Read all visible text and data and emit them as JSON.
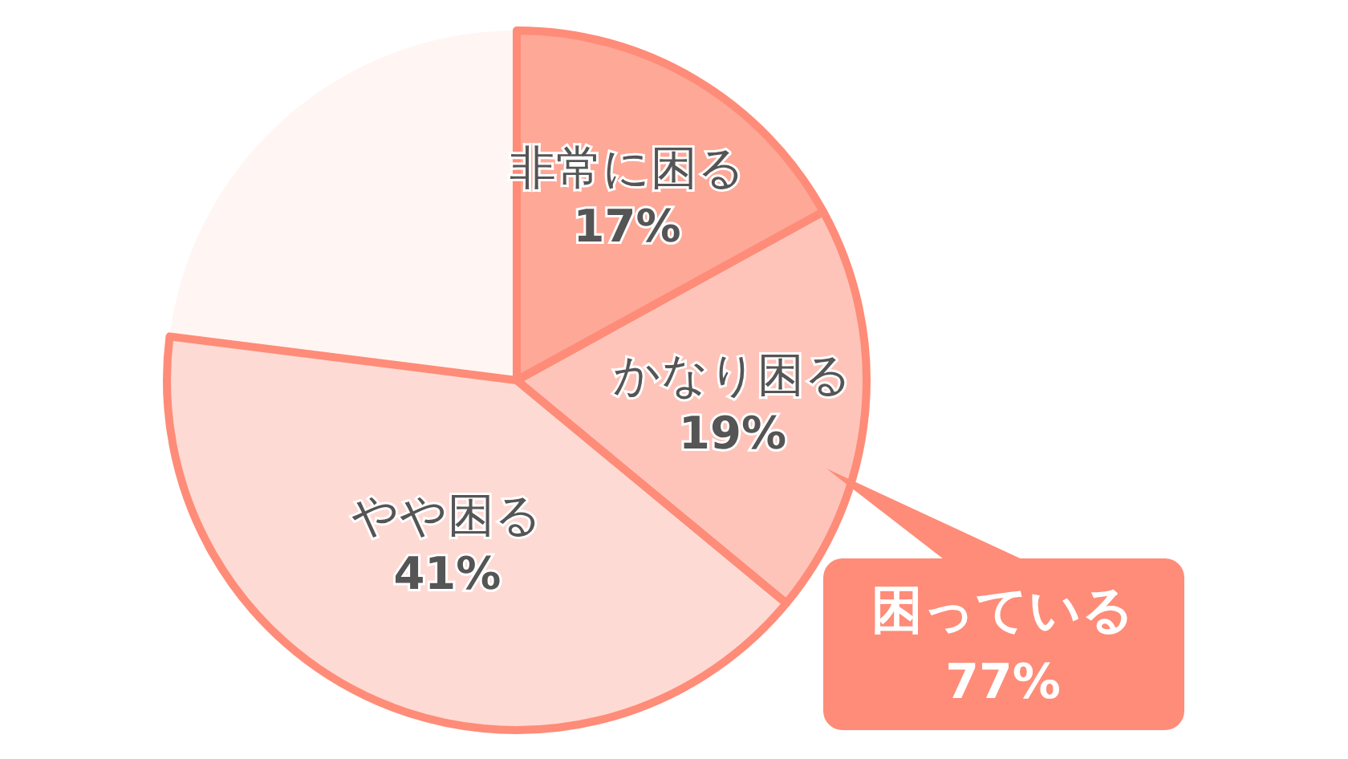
{
  "chart_data": {
    "type": "pie",
    "categories": [
      "非常に困る",
      "かなり困る",
      "やや困る",
      null
    ],
    "values": [
      17,
      19,
      41,
      23
    ],
    "colors": [
      "#fea898",
      "#fec4ba",
      "#fedad4",
      "#fff5f3"
    ],
    "value_labels": [
      "17%",
      "19%",
      "41%",
      null
    ],
    "annotations": [
      "困っている",
      "77%"
    ]
  }
}
